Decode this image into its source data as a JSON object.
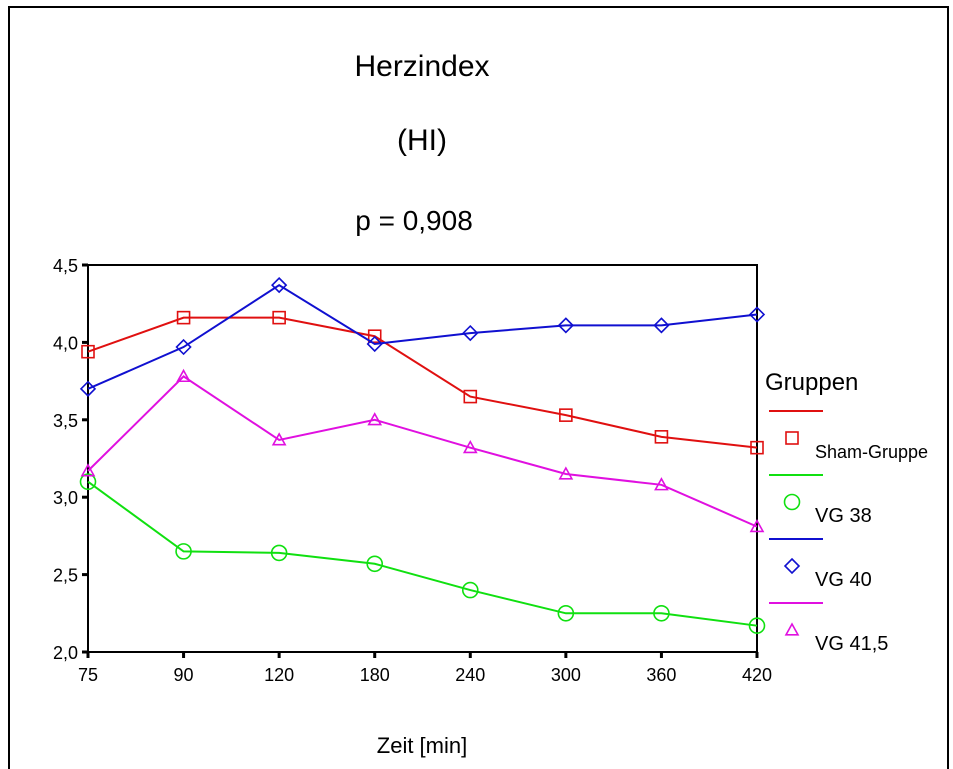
{
  "chart_data": {
    "type": "line",
    "title": "Herzindex",
    "subtitle": "(HI)",
    "annotation": "p = 0,908",
    "xlabel": "Zeit [min]",
    "ylabel": "",
    "categories": [
      "75",
      "90",
      "120",
      "180",
      "240",
      "300",
      "360",
      "420"
    ],
    "yticks": [
      "2,0",
      "2,5",
      "3,0",
      "3,5",
      "4,0",
      "4,5"
    ],
    "ytick_values": [
      2.0,
      2.5,
      3.0,
      3.5,
      4.0,
      4.5
    ],
    "ylim": [
      2.0,
      4.5
    ],
    "grid": false,
    "legend": {
      "title": "Gruppen",
      "placement": "right"
    },
    "series": [
      {
        "name": "Sham-Gruppe",
        "color": "#e01010",
        "marker": "square",
        "values": [
          3.94,
          4.16,
          4.16,
          4.04,
          3.65,
          3.53,
          3.39,
          3.32
        ]
      },
      {
        "name": "VG 38",
        "color": "#10e010",
        "marker": "circle",
        "values": [
          3.1,
          2.65,
          2.64,
          2.57,
          2.4,
          2.25,
          2.25,
          2.17
        ]
      },
      {
        "name": "VG 40",
        "color": "#1010d0",
        "marker": "diamond",
        "values": [
          3.7,
          3.97,
          4.37,
          3.99,
          4.06,
          4.11,
          4.11,
          4.18
        ]
      },
      {
        "name": "VG 41,5",
        "color": "#e010e0",
        "marker": "triangle",
        "values": [
          3.17,
          3.78,
          3.37,
          3.5,
          3.32,
          3.15,
          3.08,
          2.81
        ]
      }
    ]
  }
}
